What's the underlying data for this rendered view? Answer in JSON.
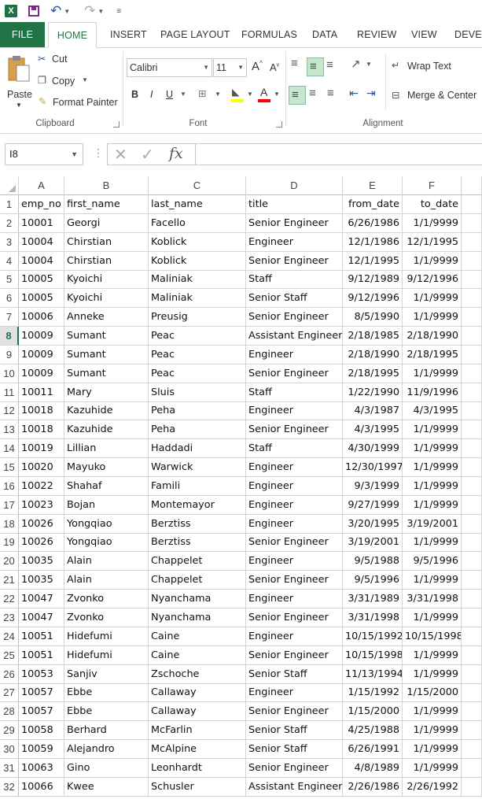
{
  "app": {
    "logo_letter": "X"
  },
  "tabs": [
    "FILE",
    "HOME",
    "INSERT",
    "PAGE LAYOUT",
    "FORMULAS",
    "DATA",
    "REVIEW",
    "VIEW",
    "DEVEL"
  ],
  "ribbon": {
    "clipboard": {
      "paste": "Paste",
      "cut": "Cut",
      "copy": "Copy",
      "format_painter": "Format Painter",
      "label": "Clipboard"
    },
    "font": {
      "name": "Calibri",
      "size": "11",
      "bold": "B",
      "italic": "I",
      "underline": "U",
      "label": "Font"
    },
    "alignment": {
      "wrap_text": "Wrap Text",
      "merge_center": "Merge & Center",
      "label": "Alignment"
    }
  },
  "formula_bar": {
    "name_box": "I8",
    "fx": "fx",
    "value": ""
  },
  "columns": [
    "A",
    "B",
    "C",
    "D",
    "E",
    "F"
  ],
  "selected_row": 8,
  "header_row": [
    "emp_no",
    "first_name",
    "last_name",
    "title",
    "from_date",
    "to_date"
  ],
  "rows": [
    [
      "10001",
      "Georgi",
      "Facello",
      "Senior Engineer",
      "6/26/1986",
      "1/1/9999"
    ],
    [
      "10004",
      "Chirstian",
      "Koblick",
      "Engineer",
      "12/1/1986",
      "12/1/1995"
    ],
    [
      "10004",
      "Chirstian",
      "Koblick",
      "Senior Engineer",
      "12/1/1995",
      "1/1/9999"
    ],
    [
      "10005",
      "Kyoichi",
      "Maliniak",
      "Staff",
      "9/12/1989",
      "9/12/1996"
    ],
    [
      "10005",
      "Kyoichi",
      "Maliniak",
      "Senior Staff",
      "9/12/1996",
      "1/1/9999"
    ],
    [
      "10006",
      "Anneke",
      "Preusig",
      "Senior Engineer",
      "8/5/1990",
      "1/1/9999"
    ],
    [
      "10009",
      "Sumant",
      "Peac",
      "Assistant Engineer",
      "2/18/1985",
      "2/18/1990"
    ],
    [
      "10009",
      "Sumant",
      "Peac",
      "Engineer",
      "2/18/1990",
      "2/18/1995"
    ],
    [
      "10009",
      "Sumant",
      "Peac",
      "Senior Engineer",
      "2/18/1995",
      "1/1/9999"
    ],
    [
      "10011",
      "Mary",
      "Sluis",
      "Staff",
      "1/22/1990",
      "11/9/1996"
    ],
    [
      "10018",
      "Kazuhide",
      "Peha",
      "Engineer",
      "4/3/1987",
      "4/3/1995"
    ],
    [
      "10018",
      "Kazuhide",
      "Peha",
      "Senior Engineer",
      "4/3/1995",
      "1/1/9999"
    ],
    [
      "10019",
      "Lillian",
      "Haddadi",
      "Staff",
      "4/30/1999",
      "1/1/9999"
    ],
    [
      "10020",
      "Mayuko",
      "Warwick",
      "Engineer",
      "12/30/1997",
      "1/1/9999"
    ],
    [
      "10022",
      "Shahaf",
      "Famili",
      "Engineer",
      "9/3/1999",
      "1/1/9999"
    ],
    [
      "10023",
      "Bojan",
      "Montemayor",
      "Engineer",
      "9/27/1999",
      "1/1/9999"
    ],
    [
      "10026",
      "Yongqiao",
      "Berztiss",
      "Engineer",
      "3/20/1995",
      "3/19/2001"
    ],
    [
      "10026",
      "Yongqiao",
      "Berztiss",
      "Senior Engineer",
      "3/19/2001",
      "1/1/9999"
    ],
    [
      "10035",
      "Alain",
      "Chappelet",
      "Engineer",
      "9/5/1988",
      "9/5/1996"
    ],
    [
      "10035",
      "Alain",
      "Chappelet",
      "Senior Engineer",
      "9/5/1996",
      "1/1/9999"
    ],
    [
      "10047",
      "Zvonko",
      "Nyanchama",
      "Engineer",
      "3/31/1989",
      "3/31/1998"
    ],
    [
      "10047",
      "Zvonko",
      "Nyanchama",
      "Senior Engineer",
      "3/31/1998",
      "1/1/9999"
    ],
    [
      "10051",
      "Hidefumi",
      "Caine",
      "Engineer",
      "10/15/1992",
      "10/15/1998"
    ],
    [
      "10051",
      "Hidefumi",
      "Caine",
      "Senior Engineer",
      "10/15/1998",
      "1/1/9999"
    ],
    [
      "10053",
      "Sanjiv",
      "Zschoche",
      "Senior Staff",
      "11/13/1994",
      "1/1/9999"
    ],
    [
      "10057",
      "Ebbe",
      "Callaway",
      "Engineer",
      "1/15/1992",
      "1/15/2000"
    ],
    [
      "10057",
      "Ebbe",
      "Callaway",
      "Senior Engineer",
      "1/15/2000",
      "1/1/9999"
    ],
    [
      "10058",
      "Berhard",
      "McFarlin",
      "Senior Staff",
      "4/25/1988",
      "1/1/9999"
    ],
    [
      "10059",
      "Alejandro",
      "McAlpine",
      "Senior Staff",
      "6/26/1991",
      "1/1/9999"
    ],
    [
      "10063",
      "Gino",
      "Leonhardt",
      "Senior Engineer",
      "4/8/1989",
      "1/1/9999"
    ],
    [
      "10066",
      "Kwee",
      "Schusler",
      "Assistant Engineer",
      "2/26/1986",
      "2/26/1992"
    ]
  ]
}
